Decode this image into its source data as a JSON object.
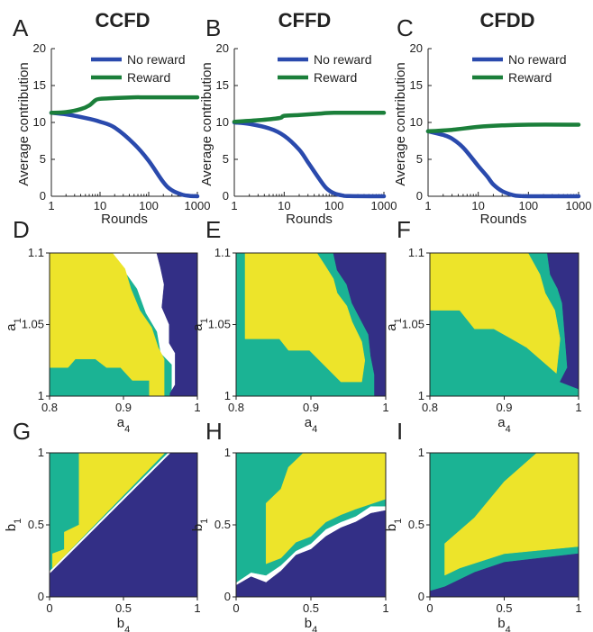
{
  "colors": {
    "no_reward": "#2a4aad",
    "reward": "#1b7f3a",
    "yellow": "#ede42a",
    "teal": "#1bb394",
    "navy": "#332f86",
    "axis": "#222222"
  },
  "chart_data": [
    {
      "type": "line",
      "panel": "A",
      "title": "CCFD",
      "xlabel": "Rounds",
      "ylabel": "Average contribution",
      "xscale": "log",
      "xlim": [
        1,
        1000
      ],
      "ylim": [
        0,
        20
      ],
      "xticks": [
        "1",
        "10",
        "100",
        "1000"
      ],
      "yticks": [
        "0",
        "5",
        "10",
        "15",
        "20"
      ],
      "legend_position": "top-right",
      "series": [
        {
          "name": "No reward",
          "color": "#2a4aad",
          "x": [
            1,
            2,
            5,
            10,
            20,
            50,
            100,
            200,
            300,
            500,
            700,
            1000
          ],
          "y": [
            11.3,
            11.1,
            10.6,
            10.1,
            9.3,
            7.1,
            4.8,
            1.9,
            0.8,
            0.2,
            0.05,
            0
          ]
        },
        {
          "name": "Reward",
          "color": "#1b7f3a",
          "x": [
            1,
            2,
            4,
            6,
            8,
            10,
            20,
            50,
            100,
            1000
          ],
          "y": [
            11.3,
            11.4,
            11.8,
            12.3,
            13.0,
            13.2,
            13.3,
            13.4,
            13.4,
            13.4
          ]
        }
      ]
    },
    {
      "type": "line",
      "panel": "B",
      "title": "CFFD",
      "xlabel": "Rounds",
      "ylabel": "Average contribution",
      "xscale": "log",
      "xlim": [
        1,
        1000
      ],
      "ylim": [
        0,
        20
      ],
      "xticks": [
        "1",
        "10",
        "100",
        "1000"
      ],
      "yticks": [
        "0",
        "5",
        "10",
        "15",
        "20"
      ],
      "legend_position": "top-right",
      "series": [
        {
          "name": "No reward",
          "color": "#2a4aad",
          "x": [
            1,
            2,
            5,
            10,
            20,
            30,
            50,
            70,
            100,
            150,
            200,
            1000
          ],
          "y": [
            10.0,
            9.8,
            9.2,
            8.2,
            6.3,
            4.6,
            2.4,
            1.1,
            0.4,
            0.1,
            0.02,
            0
          ]
        },
        {
          "name": "Reward",
          "color": "#1b7f3a",
          "x": [
            1,
            3,
            8,
            10,
            20,
            50,
            100,
            1000
          ],
          "y": [
            10.1,
            10.3,
            10.6,
            10.9,
            11.0,
            11.2,
            11.3,
            11.3
          ]
        }
      ]
    },
    {
      "type": "line",
      "panel": "C",
      "title": "CFDD",
      "xlabel": "Rounds",
      "ylabel": "Average contribution",
      "xscale": "log",
      "xlim": [
        1,
        1000
      ],
      "ylim": [
        0,
        20
      ],
      "xticks": [
        "1",
        "10",
        "100",
        "1000"
      ],
      "yticks": [
        "0",
        "5",
        "10",
        "15",
        "20"
      ],
      "legend_position": "top-right",
      "series": [
        {
          "name": "No reward",
          "color": "#2a4aad",
          "x": [
            1,
            2,
            3,
            5,
            10,
            15,
            20,
            30,
            50,
            70,
            100,
            1000
          ],
          "y": [
            8.8,
            8.3,
            7.8,
            6.6,
            4.1,
            2.7,
            1.6,
            0.7,
            0.15,
            0.04,
            0,
            0
          ]
        },
        {
          "name": "Reward",
          "color": "#1b7f3a",
          "x": [
            1,
            3,
            10,
            30,
            100,
            1000
          ],
          "y": [
            8.8,
            9.0,
            9.4,
            9.6,
            9.7,
            9.7
          ]
        }
      ]
    },
    {
      "type": "heatmap",
      "panel": "D",
      "xlabel": "a4",
      "ylabel": "a1",
      "xlim": [
        0.8,
        1.0
      ],
      "ylim": [
        1.0,
        1.1
      ],
      "xticks": [
        "0.8",
        "0.9",
        "1"
      ],
      "yticks": [
        "1",
        "1.05",
        "1.1"
      ],
      "regions": [
        {
          "color": "#1bb394",
          "points": [
            [
              0.8,
              1.0
            ],
            [
              0.965,
              1.0
            ],
            [
              0.965,
              1.022
            ],
            [
              0.95,
              1.03
            ],
            [
              0.945,
              1.045
            ],
            [
              0.93,
              1.058
            ],
            [
              0.918,
              1.075
            ],
            [
              0.9,
              1.088
            ],
            [
              0.875,
              1.1
            ],
            [
              0.8,
              1.1
            ]
          ]
        },
        {
          "color": "#ede42a",
          "points": [
            [
              0.8,
              1.02
            ],
            [
              0.825,
              1.02
            ],
            [
              0.835,
              1.026
            ],
            [
              0.862,
              1.026
            ],
            [
              0.877,
              1.02
            ],
            [
              0.896,
              1.02
            ],
            [
              0.912,
              1.011
            ],
            [
              0.935,
              1.011
            ],
            [
              0.935,
              1.0
            ],
            [
              0.955,
              1.0
            ],
            [
              0.955,
              1.026
            ],
            [
              0.947,
              1.034
            ],
            [
              0.938,
              1.048
            ],
            [
              0.922,
              1.06
            ],
            [
              0.91,
              1.075
            ],
            [
              0.902,
              1.089
            ],
            [
              0.885,
              1.1
            ],
            [
              0.8,
              1.1
            ]
          ]
        },
        {
          "color": "#332f86",
          "points": [
            [
              0.963,
              1.0
            ],
            [
              1.0,
              1.0
            ],
            [
              1.0,
              1.1
            ],
            [
              0.945,
              1.1
            ],
            [
              0.95,
              1.09
            ],
            [
              0.955,
              1.078
            ],
            [
              0.952,
              1.062
            ],
            [
              0.962,
              1.05
            ],
            [
              0.962,
              1.037
            ],
            [
              0.97,
              1.03
            ],
            [
              0.97,
              1.008
            ],
            [
              0.963,
              1.002
            ]
          ]
        }
      ]
    },
    {
      "type": "heatmap",
      "panel": "E",
      "xlabel": "a4",
      "ylabel": "a1",
      "xlim": [
        0.8,
        1.0
      ],
      "ylim": [
        1.0,
        1.1
      ],
      "xticks": [
        "0.8",
        "0.9",
        "1"
      ],
      "yticks": [
        "1",
        "1.05",
        "1.1"
      ],
      "regions": [
        {
          "color": "#1bb394",
          "points": [
            [
              0.8,
              1.0
            ],
            [
              0.985,
              1.0
            ],
            [
              0.985,
              1.1
            ],
            [
              0.8,
              1.1
            ]
          ]
        },
        {
          "color": "#ede42a",
          "points": [
            [
              0.812,
              1.1
            ],
            [
              0.812,
              1.04
            ],
            [
              0.858,
              1.04
            ],
            [
              0.87,
              1.032
            ],
            [
              0.898,
              1.032
            ],
            [
              0.94,
              1.01
            ],
            [
              0.968,
              1.01
            ],
            [
              0.972,
              1.025
            ],
            [
              0.968,
              1.038
            ],
            [
              0.955,
              1.052
            ],
            [
              0.948,
              1.063
            ],
            [
              0.935,
              1.072
            ],
            [
              0.93,
              1.082
            ],
            [
              0.918,
              1.092
            ],
            [
              0.908,
              1.1
            ]
          ]
        },
        {
          "color": "#332f86",
          "points": [
            [
              0.985,
              1.0
            ],
            [
              1.0,
              1.0
            ],
            [
              1.0,
              1.1
            ],
            [
              0.93,
              1.1
            ],
            [
              0.935,
              1.088
            ],
            [
              0.948,
              1.078
            ],
            [
              0.955,
              1.065
            ],
            [
              0.965,
              1.055
            ],
            [
              0.977,
              1.043
            ],
            [
              0.98,
              1.028
            ],
            [
              0.985,
              1.015
            ]
          ]
        }
      ]
    },
    {
      "type": "heatmap",
      "panel": "F",
      "xlabel": "a4",
      "ylabel": "a1",
      "xlim": [
        0.8,
        1.0
      ],
      "ylim": [
        1.0,
        1.1
      ],
      "xticks": [
        "0.8",
        "0.9",
        "1"
      ],
      "yticks": [
        "1",
        "1.05",
        "1.1"
      ],
      "regions": [
        {
          "color": "#1bb394",
          "points": [
            [
              0.8,
              1.0
            ],
            [
              1.0,
              1.0
            ],
            [
              1.0,
              1.1
            ],
            [
              0.8,
              1.1
            ]
          ]
        },
        {
          "color": "#ede42a",
          "points": [
            [
              0.8,
              1.06
            ],
            [
              0.84,
              1.06
            ],
            [
              0.86,
              1.047
            ],
            [
              0.886,
              1.047
            ],
            [
              0.91,
              1.04
            ],
            [
              0.93,
              1.034
            ],
            [
              0.97,
              1.016
            ],
            [
              0.975,
              1.04
            ],
            [
              0.968,
              1.06
            ],
            [
              0.955,
              1.072
            ],
            [
              0.948,
              1.085
            ],
            [
              0.932,
              1.1
            ],
            [
              0.8,
              1.1
            ]
          ]
        },
        {
          "color": "#332f86",
          "points": [
            [
              0.975,
              1.01
            ],
            [
              1.0,
              1.005
            ],
            [
              1.0,
              1.1
            ],
            [
              0.958,
              1.1
            ],
            [
              0.962,
              1.085
            ],
            [
              0.972,
              1.075
            ],
            [
              0.978,
              1.065
            ],
            [
              0.982,
              1.04
            ],
            [
              0.985,
              1.02
            ]
          ]
        }
      ]
    },
    {
      "type": "heatmap",
      "panel": "G",
      "xlabel": "b4",
      "ylabel": "b1",
      "xlim": [
        0,
        1
      ],
      "ylim": [
        0,
        1
      ],
      "xticks": [
        "0",
        "0.5",
        "1"
      ],
      "yticks": [
        "0",
        "0.5",
        "1"
      ],
      "regions": [
        {
          "color": "#1bb394",
          "points": [
            [
              0,
              0.18
            ],
            [
              0.8,
              1.0
            ],
            [
              0,
              1.0
            ]
          ]
        },
        {
          "color": "#ede42a",
          "points": [
            [
              0.02,
              0.2
            ],
            [
              0.78,
              1.0
            ],
            [
              0.2,
              1.0
            ],
            [
              0.2,
              0.5
            ],
            [
              0.1,
              0.45
            ],
            [
              0.1,
              0.33
            ],
            [
              0.02,
              0.3
            ]
          ]
        },
        {
          "color": "#332f86",
          "points": [
            [
              0,
              0
            ],
            [
              1,
              0
            ],
            [
              1,
              1.0
            ],
            [
              0.82,
              1.0
            ],
            [
              0,
              0.16
            ]
          ]
        }
      ]
    },
    {
      "type": "heatmap",
      "panel": "H",
      "xlabel": "b4",
      "ylabel": "b1",
      "xlim": [
        0,
        1
      ],
      "ylim": [
        0,
        1
      ],
      "xticks": [
        "0",
        "0.5",
        "1"
      ],
      "yticks": [
        "0",
        "0.5",
        "1"
      ],
      "regions": [
        {
          "color": "#1bb394",
          "points": [
            [
              0,
              0.1
            ],
            [
              0.1,
              0.17
            ],
            [
              0.2,
              0.15
            ],
            [
              0.3,
              0.22
            ],
            [
              0.4,
              0.32
            ],
            [
              0.5,
              0.37
            ],
            [
              0.6,
              0.47
            ],
            [
              0.7,
              0.52
            ],
            [
              0.8,
              0.56
            ],
            [
              0.9,
              0.63
            ],
            [
              1,
              0.63
            ],
            [
              1,
              1
            ],
            [
              0,
              1
            ]
          ]
        },
        {
          "color": "#ede42a",
          "points": [
            [
              0.2,
              0.23
            ],
            [
              0.3,
              0.27
            ],
            [
              0.4,
              0.38
            ],
            [
              0.5,
              0.42
            ],
            [
              0.6,
              0.52
            ],
            [
              0.7,
              0.57
            ],
            [
              0.8,
              0.61
            ],
            [
              1,
              0.68
            ],
            [
              1,
              1
            ],
            [
              0.45,
              1
            ],
            [
              0.35,
              0.9
            ],
            [
              0.3,
              0.75
            ],
            [
              0.2,
              0.65
            ]
          ]
        },
        {
          "color": "#332f86",
          "points": [
            [
              0,
              0
            ],
            [
              1,
              0
            ],
            [
              1,
              0.6
            ],
            [
              0.9,
              0.58
            ],
            [
              0.8,
              0.52
            ],
            [
              0.7,
              0.48
            ],
            [
              0.6,
              0.42
            ],
            [
              0.5,
              0.33
            ],
            [
              0.4,
              0.29
            ],
            [
              0.3,
              0.18
            ],
            [
              0.2,
              0.1
            ],
            [
              0.1,
              0.14
            ],
            [
              0,
              0.08
            ]
          ]
        }
      ]
    },
    {
      "type": "heatmap",
      "panel": "I",
      "xlabel": "b4",
      "ylabel": "b1",
      "xlim": [
        0,
        1
      ],
      "ylim": [
        0,
        1
      ],
      "xticks": [
        "0",
        "0.5",
        "1"
      ],
      "yticks": [
        "0",
        "0.5",
        "1"
      ],
      "regions": [
        {
          "color": "#1bb394",
          "points": [
            [
              0,
              0
            ],
            [
              1,
              0
            ],
            [
              1,
              1
            ],
            [
              0,
              1
            ]
          ]
        },
        {
          "color": "#ede42a",
          "points": [
            [
              0.1,
              0.15
            ],
            [
              0.2,
              0.2
            ],
            [
              0.5,
              0.3
            ],
            [
              1,
              0.35
            ],
            [
              1,
              1
            ],
            [
              0.72,
              1
            ],
            [
              0.5,
              0.8
            ],
            [
              0.3,
              0.55
            ],
            [
              0.1,
              0.37
            ]
          ]
        },
        {
          "color": "#332f86",
          "points": [
            [
              0,
              0
            ],
            [
              1,
              0
            ],
            [
              1,
              0.3
            ],
            [
              0.5,
              0.24
            ],
            [
              0.3,
              0.17
            ],
            [
              0.2,
              0.12
            ],
            [
              0.1,
              0.07
            ],
            [
              0,
              0.04
            ]
          ]
        }
      ]
    }
  ]
}
